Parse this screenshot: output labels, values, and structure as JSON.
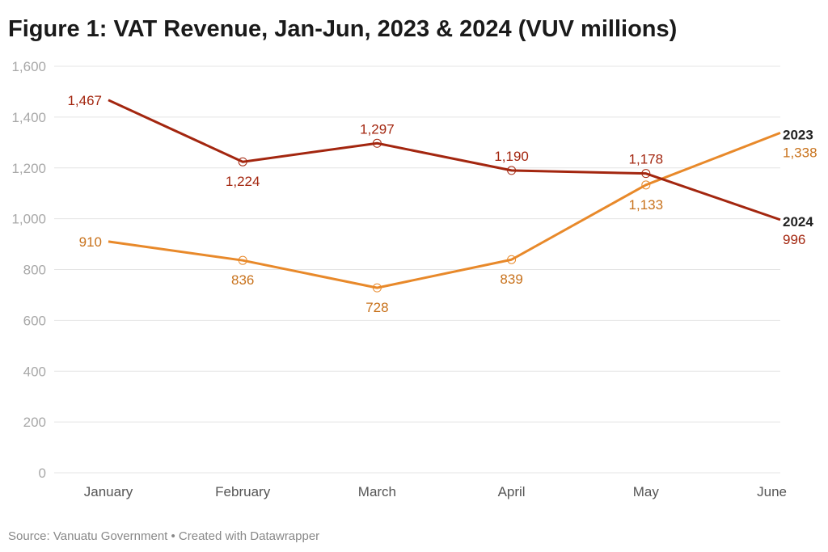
{
  "chart_data": {
    "type": "line",
    "title": "Figure 1: VAT Revenue, Jan-Jun, 2023 & 2024 (VUV millions)",
    "categories": [
      "January",
      "February",
      "March",
      "April",
      "May",
      "June"
    ],
    "ylim": [
      0,
      1600
    ],
    "yticks": [
      0,
      200,
      400,
      600,
      800,
      1000,
      1200,
      1400,
      1600
    ],
    "ytick_labels": [
      "0",
      "200",
      "400",
      "600",
      "800",
      "1,000",
      "1,200",
      "1,400",
      "1,600"
    ],
    "grid": true,
    "series": [
      {
        "name": "2023",
        "values": [
          910,
          836,
          728,
          839,
          1133,
          1338
        ],
        "labels": [
          "910",
          "836",
          "728",
          "839",
          "1,133",
          "1,338"
        ],
        "color": "#e8892a",
        "label_color": "#c8721c"
      },
      {
        "name": "2024",
        "values": [
          1467,
          1224,
          1297,
          1190,
          1178,
          996
        ],
        "labels": [
          "1,467",
          "1,224",
          "1,297",
          "1,190",
          "1,178",
          "996"
        ],
        "color": "#a3260f",
        "label_color": "#a3260f"
      }
    ]
  },
  "footer": "Source: Vanuatu Government • Created with Datawrapper"
}
